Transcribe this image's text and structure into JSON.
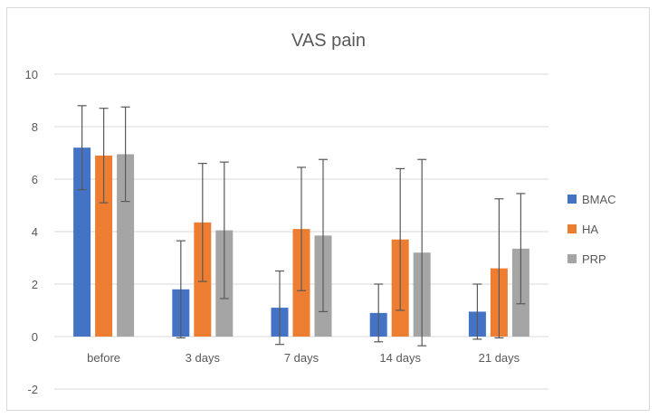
{
  "chart_data": {
    "type": "bar",
    "title": "VAS pain",
    "xlabel": "",
    "ylabel": "",
    "ylim": [
      -2,
      10
    ],
    "yticks": [
      -2,
      0,
      2,
      4,
      6,
      8,
      10
    ],
    "grid": true,
    "legend_position": "right",
    "categories": [
      "before",
      "3 days",
      "7 days",
      "14 days",
      "21 days"
    ],
    "series": [
      {
        "name": "BMAC",
        "color": "#4472c4",
        "values": [
          7.2,
          1.8,
          1.1,
          0.9,
          0.95
        ],
        "errors": [
          1.6,
          1.85,
          1.4,
          1.1,
          1.05
        ]
      },
      {
        "name": "HA",
        "color": "#ed7d31",
        "values": [
          6.9,
          4.35,
          4.1,
          3.7,
          2.6
        ],
        "errors": [
          1.8,
          2.25,
          2.35,
          2.7,
          2.65
        ]
      },
      {
        "name": "PRP",
        "color": "#a5a5a5",
        "values": [
          6.95,
          4.05,
          3.85,
          3.2,
          3.35
        ],
        "errors": [
          1.8,
          2.6,
          2.9,
          3.55,
          2.1
        ]
      }
    ]
  }
}
